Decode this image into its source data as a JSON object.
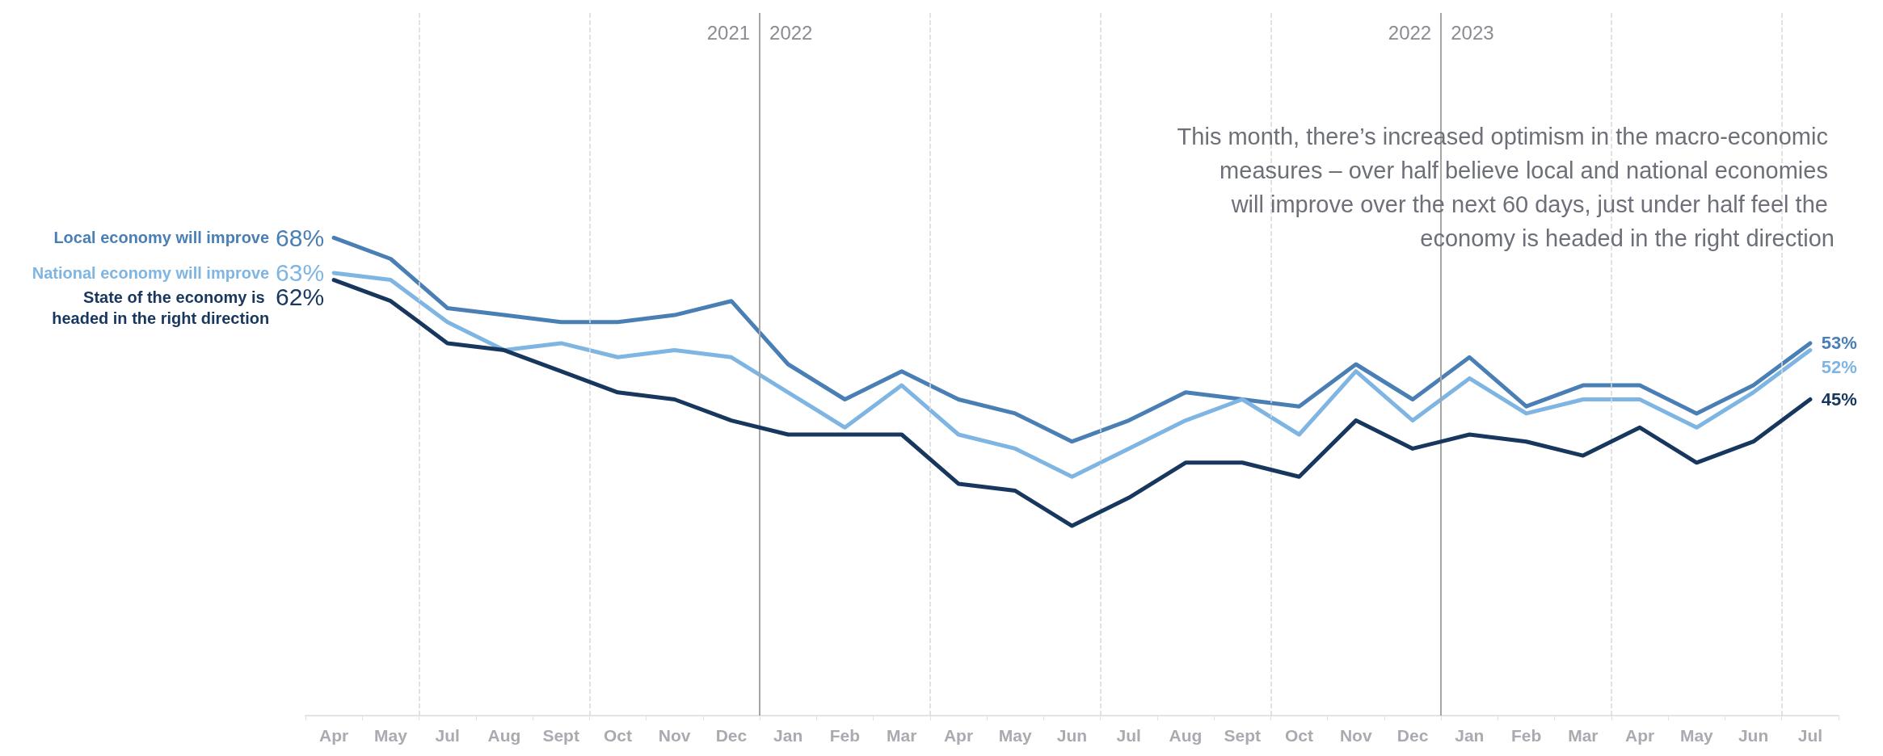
{
  "chart_data": {
    "type": "line",
    "categories": [
      "Apr",
      "May",
      "Jul",
      "Aug",
      "Sept",
      "Oct",
      "Nov",
      "Dec",
      "Jan",
      "Feb",
      "Mar",
      "Apr",
      "May",
      "Jun",
      "Jul",
      "Aug",
      "Sept",
      "Oct",
      "Nov",
      "Dec",
      "Jan",
      "Feb",
      "Mar",
      "Apr",
      "May",
      "Jun",
      "Jul"
    ],
    "series": [
      {
        "name": "Local economy will improve",
        "color": "#4a7fb5",
        "values": [
          68,
          65,
          58,
          57,
          56,
          56,
          57,
          59,
          50,
          45,
          49,
          45,
          43,
          39,
          42,
          46,
          45,
          44,
          50,
          45,
          51,
          44,
          47,
          47,
          43,
          47,
          53
        ],
        "value_labels": [
          "68%",
          null,
          null,
          null,
          null,
          null,
          null,
          null,
          null,
          null,
          null,
          null,
          null,
          null,
          null,
          null,
          null,
          null,
          null,
          null,
          null,
          null,
          null,
          null,
          null,
          null,
          "53%"
        ]
      },
      {
        "name": "National economy will improve",
        "color": "#7fb5e2",
        "values": [
          63,
          62,
          56,
          52,
          53,
          51,
          52,
          51,
          46,
          41,
          47,
          40,
          38,
          34,
          38,
          42,
          45,
          40,
          49,
          42,
          48,
          43,
          45,
          45,
          41,
          46,
          52
        ],
        "value_labels": [
          "63%",
          null,
          null,
          null,
          null,
          null,
          null,
          null,
          null,
          null,
          null,
          null,
          null,
          null,
          null,
          null,
          null,
          null,
          null,
          null,
          null,
          null,
          null,
          null,
          null,
          null,
          "52%"
        ]
      },
      {
        "name": "State of the economy is headed in the right direction",
        "color": "#17375e",
        "values": [
          62,
          59,
          53,
          52,
          49,
          46,
          45,
          42,
          40,
          40,
          40,
          33,
          32,
          27,
          31,
          36,
          36,
          34,
          42,
          38,
          40,
          39,
          37,
          41,
          36,
          39,
          45
        ],
        "value_labels": [
          "62%",
          null,
          null,
          null,
          null,
          null,
          null,
          null,
          null,
          null,
          null,
          null,
          null,
          null,
          null,
          null,
          null,
          null,
          null,
          null,
          null,
          null,
          null,
          null,
          null,
          null,
          "45%"
        ]
      }
    ],
    "ylim": [
      0,
      100
    ],
    "annotations": [
      "2021",
      "2022",
      "2022",
      "2023",
      "This month, there’s increased optimism in the macro-economic measures – over half believe local and national economies will improve over the next 60 days, just under half feel the economy is headed in the right direction"
    ],
    "grid": false,
    "legend": false,
    "marker": "none",
    "line_style": "solid"
  }
}
